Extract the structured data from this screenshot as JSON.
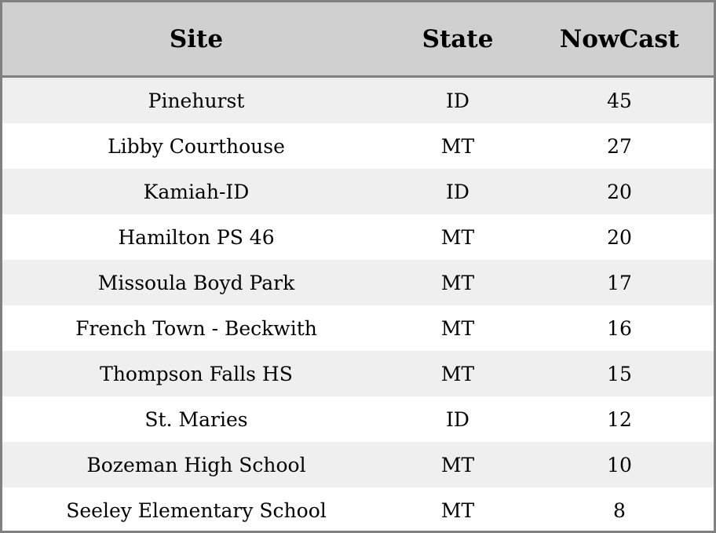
{
  "chart_data": {
    "type": "table",
    "columns": [
      "Site",
      "State",
      "NowCast"
    ],
    "rows": [
      [
        "Pinehurst",
        "ID",
        "45"
      ],
      [
        "Libby Courthouse",
        "MT",
        "27"
      ],
      [
        "Kamiah-ID",
        "ID",
        "20"
      ],
      [
        "Hamilton PS 46",
        "MT",
        "20"
      ],
      [
        "Missoula Boyd Park",
        "MT",
        "17"
      ],
      [
        "French Town - Beckwith",
        "MT",
        "16"
      ],
      [
        "Thompson Falls HS",
        "MT",
        "15"
      ],
      [
        "St. Maries",
        "ID",
        "12"
      ],
      [
        "Bozeman High School",
        "MT",
        "10"
      ],
      [
        "Seeley Elementary School",
        "MT",
        "8"
      ]
    ],
    "colors": {
      "header_bg": "#d0d0d0",
      "stripe_bg": "#efefef",
      "border": "#808080"
    }
  }
}
